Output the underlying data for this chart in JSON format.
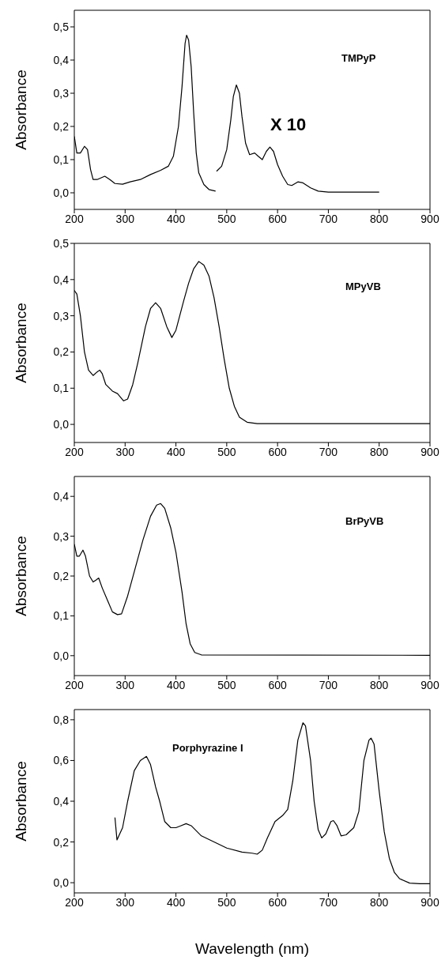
{
  "chart_data": [
    {
      "type": "line",
      "ylabel": "Absorbance",
      "annotations": [
        "TMPyP",
        "X 10"
      ],
      "xlim": [
        200,
        900
      ],
      "xticks": [
        200,
        300,
        400,
        500,
        600,
        700,
        800,
        900
      ],
      "ylim": [
        -0.05,
        0.55
      ],
      "yticks": [
        {
          "value": 0,
          "label": "0,0"
        },
        {
          "value": 0.1,
          "label": "0,1"
        },
        {
          "value": 0.2,
          "label": "0,2"
        },
        {
          "value": 0.3,
          "label": "0,3"
        },
        {
          "value": 0.4,
          "label": "0,4"
        },
        {
          "value": 0.5,
          "label": "0,5"
        }
      ],
      "grid": false,
      "series": [
        {
          "color": "#000000",
          "x": [
            200,
            205,
            212,
            220,
            226,
            232,
            237,
            245,
            260,
            270,
            280,
            295,
            310,
            330,
            350,
            370,
            385,
            395,
            405,
            412,
            418,
            421,
            425,
            430,
            435,
            440,
            445,
            455,
            465,
            478
          ],
          "values": [
            0.17,
            0.12,
            0.12,
            0.14,
            0.13,
            0.07,
            0.04,
            0.04,
            0.05,
            0.04,
            0.028,
            0.026,
            0.033,
            0.04,
            0.055,
            0.068,
            0.08,
            0.11,
            0.2,
            0.32,
            0.45,
            0.475,
            0.46,
            0.38,
            0.24,
            0.12,
            0.06,
            0.025,
            0.01,
            0.005
          ]
        },
        {
          "color": "#000000",
          "x": [
            480,
            490,
            500,
            508,
            513,
            519,
            525,
            530,
            537,
            545,
            555,
            562,
            570,
            578,
            585,
            592,
            600,
            610,
            620,
            628,
            640,
            650,
            665,
            680,
            700,
            800
          ],
          "values": [
            0.065,
            0.08,
            0.13,
            0.22,
            0.29,
            0.325,
            0.3,
            0.23,
            0.15,
            0.115,
            0.12,
            0.11,
            0.1,
            0.125,
            0.138,
            0.125,
            0.085,
            0.05,
            0.025,
            0.022,
            0.033,
            0.03,
            0.015,
            0.005,
            0.002,
            0.002
          ]
        }
      ]
    },
    {
      "type": "line",
      "ylabel": "Absorbance",
      "annotations": [
        "MPyVB"
      ],
      "xlim": [
        200,
        900
      ],
      "xticks": [
        200,
        300,
        400,
        500,
        600,
        700,
        800,
        900
      ],
      "ylim": [
        -0.05,
        0.5
      ],
      "yticks": [
        {
          "value": 0,
          "label": "0,0"
        },
        {
          "value": 0.1,
          "label": "0,1"
        },
        {
          "value": 0.2,
          "label": "0,2"
        },
        {
          "value": 0.3,
          "label": "0,3"
        },
        {
          "value": 0.4,
          "label": "0,4"
        },
        {
          "value": 0.5,
          "label": "0,5"
        }
      ],
      "grid": false,
      "series": [
        {
          "color": "#000000",
          "x": [
            200,
            205,
            212,
            220,
            228,
            237,
            245,
            250,
            255,
            262,
            275,
            285,
            297,
            305,
            315,
            325,
            340,
            350,
            360,
            370,
            382,
            392,
            400,
            415,
            425,
            435,
            445,
            455,
            465,
            475,
            485,
            495,
            505,
            515,
            525,
            540,
            560,
            900
          ],
          "values": [
            0.37,
            0.36,
            0.3,
            0.2,
            0.15,
            0.135,
            0.145,
            0.15,
            0.14,
            0.11,
            0.092,
            0.085,
            0.065,
            0.07,
            0.11,
            0.17,
            0.27,
            0.32,
            0.336,
            0.32,
            0.27,
            0.24,
            0.26,
            0.34,
            0.39,
            0.43,
            0.45,
            0.44,
            0.41,
            0.35,
            0.27,
            0.18,
            0.1,
            0.05,
            0.02,
            0.006,
            0.002,
            0.002
          ]
        }
      ]
    },
    {
      "type": "line",
      "ylabel": "Absorbance",
      "annotations": [
        "BrPyVB"
      ],
      "xlim": [
        200,
        900
      ],
      "xticks": [
        200,
        300,
        400,
        500,
        600,
        700,
        800,
        900
      ],
      "ylim": [
        -0.05,
        0.45
      ],
      "yticks": [
        {
          "value": 0,
          "label": "0,0"
        },
        {
          "value": 0.1,
          "label": "0,1"
        },
        {
          "value": 0.2,
          "label": "0,2"
        },
        {
          "value": 0.3,
          "label": "0,3"
        },
        {
          "value": 0.4,
          "label": "0,4"
        }
      ],
      "grid": false,
      "series": [
        {
          "color": "#000000",
          "x": [
            200,
            205,
            210,
            217,
            222,
            230,
            237,
            243,
            248,
            255,
            265,
            275,
            285,
            293,
            305,
            320,
            335,
            350,
            362,
            370,
            378,
            390,
            400,
            412,
            420,
            428,
            437,
            450,
            900
          ],
          "values": [
            0.28,
            0.25,
            0.25,
            0.265,
            0.25,
            0.2,
            0.185,
            0.19,
            0.195,
            0.17,
            0.14,
            0.11,
            0.103,
            0.105,
            0.15,
            0.22,
            0.29,
            0.35,
            0.378,
            0.382,
            0.37,
            0.32,
            0.26,
            0.16,
            0.08,
            0.03,
            0.008,
            0.002,
            0.001
          ]
        }
      ]
    },
    {
      "type": "line",
      "xlabel": "Wavelength (nm)",
      "ylabel": "Absorbance",
      "annotations": [
        "Porphyrazine I"
      ],
      "xlim": [
        200,
        900
      ],
      "xticks": [
        200,
        300,
        400,
        500,
        600,
        700,
        800,
        900
      ],
      "ylim": [
        -0.05,
        0.85
      ],
      "yticks": [
        {
          "value": 0,
          "label": "0,0"
        },
        {
          "value": 0.2,
          "label": "0,2"
        },
        {
          "value": 0.4,
          "label": "0,4"
        },
        {
          "value": 0.6,
          "label": "0,6"
        },
        {
          "value": 0.8,
          "label": "0,8"
        }
      ],
      "grid": false,
      "series": [
        {
          "color": "#000000",
          "x": [
            280,
            284,
            295,
            305,
            318,
            330,
            342,
            350,
            360,
            368,
            378,
            390,
            400,
            410,
            420,
            430,
            450,
            475,
            500,
            530,
            550,
            560,
            570,
            580,
            595,
            610,
            620,
            630,
            640,
            650,
            655,
            665,
            672,
            680,
            687,
            695,
            705,
            710,
            717,
            725,
            735,
            750,
            760,
            770,
            780,
            784,
            790,
            800,
            810,
            820,
            830,
            840,
            860,
            880,
            900
          ],
          "values": [
            0.32,
            0.21,
            0.27,
            0.4,
            0.55,
            0.6,
            0.62,
            0.58,
            0.47,
            0.4,
            0.3,
            0.27,
            0.27,
            0.28,
            0.29,
            0.28,
            0.23,
            0.2,
            0.17,
            0.15,
            0.145,
            0.14,
            0.16,
            0.22,
            0.3,
            0.33,
            0.36,
            0.5,
            0.7,
            0.785,
            0.77,
            0.6,
            0.4,
            0.26,
            0.22,
            0.24,
            0.3,
            0.305,
            0.28,
            0.23,
            0.235,
            0.27,
            0.35,
            0.6,
            0.7,
            0.71,
            0.68,
            0.45,
            0.25,
            0.12,
            0.05,
            0.02,
            -0.002,
            -0.005,
            -0.005
          ]
        }
      ]
    }
  ]
}
